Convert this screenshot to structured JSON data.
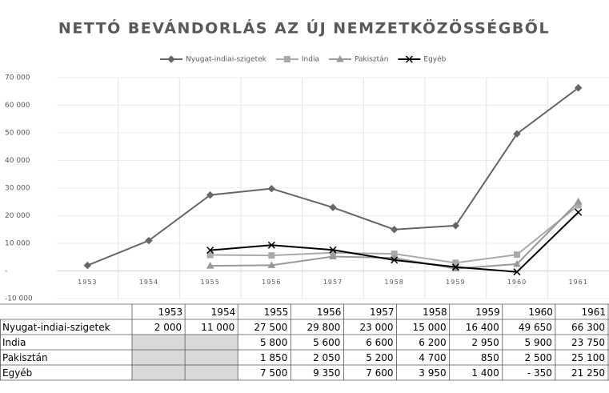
{
  "chart_data": {
    "type": "line",
    "title": "NETTÓ BEVÁNDORLÁS AZ ÚJ NEMZETKÖZÖSSÉGBŐL",
    "categories": [
      "1953",
      "1954",
      "1955",
      "1956",
      "1957",
      "1958",
      "1959",
      "1960",
      "1961"
    ],
    "series": [
      {
        "name": "Nyugat-indiai-szigetek",
        "color": "#666666",
        "marker": "diamond",
        "values": [
          2000,
          11000,
          27500,
          29800,
          23000,
          15000,
          16400,
          49650,
          66300
        ],
        "value_labels": [
          "2 000",
          "11 000",
          "27 500",
          "29 800",
          "23 000",
          "15 000",
          "16 400",
          "49 650",
          "66 300"
        ]
      },
      {
        "name": "India",
        "color": "#aaaaaa",
        "marker": "square",
        "values": [
          null,
          null,
          5800,
          5600,
          6600,
          6200,
          2950,
          5900,
          23750
        ],
        "value_labels": [
          null,
          null,
          "5 800",
          "5 600",
          "6 600",
          "6 200",
          "2 950",
          "5 900",
          "23 750"
        ]
      },
      {
        "name": "Pakisztán",
        "color": "#999999",
        "marker": "triangle",
        "values": [
          null,
          null,
          1850,
          2050,
          5200,
          4700,
          850,
          2500,
          25100
        ],
        "value_labels": [
          null,
          null,
          "1 850",
          "2 050",
          "5 200",
          "4 700",
          "850",
          "2 500",
          "25 100"
        ]
      },
      {
        "name": "Egyéb",
        "color": "#000000",
        "marker": "x",
        "values": [
          null,
          null,
          7500,
          9350,
          7600,
          3950,
          1400,
          -350,
          21250
        ],
        "value_labels": [
          null,
          null,
          "7 500",
          "9 350",
          "7 600",
          "3 950",
          "1 400",
          "- 350",
          "21 250"
        ]
      }
    ],
    "ylim": [
      -10000,
      70000
    ],
    "yticks": [
      {
        "value": -10000,
        "label": "-10 000"
      },
      {
        "value": 0,
        "label": "-"
      },
      {
        "value": 10000,
        "label": "10 000"
      },
      {
        "value": 20000,
        "label": "20 000"
      },
      {
        "value": 30000,
        "label": "30 000"
      },
      {
        "value": 40000,
        "label": "40 000"
      },
      {
        "value": 50000,
        "label": "50 000"
      },
      {
        "value": 60000,
        "label": "60 000"
      },
      {
        "value": 70000,
        "label": "70 000"
      }
    ],
    "grid": true,
    "legend": "top"
  }
}
